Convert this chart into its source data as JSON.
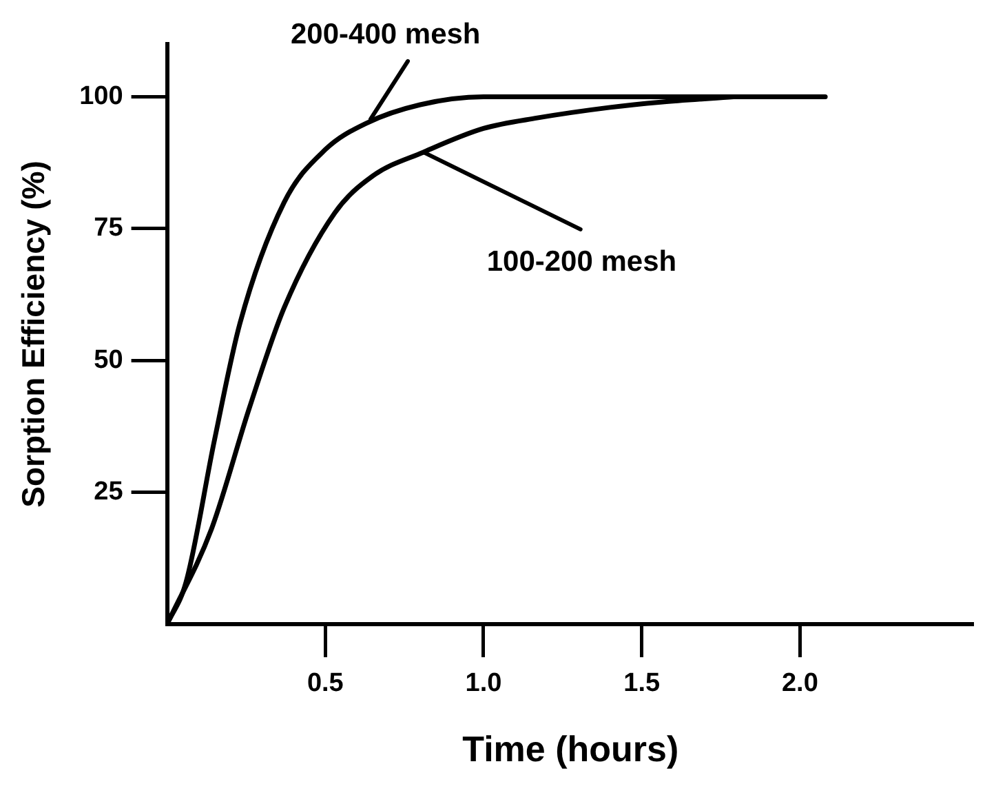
{
  "chart_data": {
    "type": "line",
    "xlabel": "Time (hours)",
    "ylabel": "Sorption Efficiency (%)",
    "xlim": [
      0,
      2.55
    ],
    "xticks": [
      0.5,
      {
        "value": 1,
        "label": "1.0"
      },
      1.5,
      {
        "value": 2,
        "label": "2.0"
      }
    ],
    "ylim": [
      0,
      110
    ],
    "yticks": [
      25,
      50,
      75,
      100
    ],
    "grid": false,
    "legend": false,
    "marker": "none",
    "line_style": "solid",
    "series": [
      {
        "color": "#000000",
        "x": [
          0,
          0.06,
          0.15,
          0.23,
          0.37,
          0.5,
          0.63,
          0.8,
          1.0,
          1.5,
          2.08
        ],
        "values": [
          0,
          8,
          35,
          57,
          80,
          90,
          95,
          98.5,
          100,
          100,
          100
        ]
      },
      {
        "color": "#000000",
        "x": [
          0,
          0.14,
          0.26,
          0.37,
          0.53,
          0.65,
          0.81,
          1.0,
          1.17,
          1.4,
          1.56,
          1.79
        ],
        "values": [
          0,
          18,
          41,
          60,
          78,
          85,
          89.5,
          94,
          96,
          98,
          99,
          100
        ]
      }
    ],
    "annotations": [
      {
        "text": "200-400 mesh",
        "x": 0.63,
        "y": 95
      },
      {
        "text": "100-200 mesh",
        "x": 0.81,
        "y": 89.5
      }
    ]
  }
}
